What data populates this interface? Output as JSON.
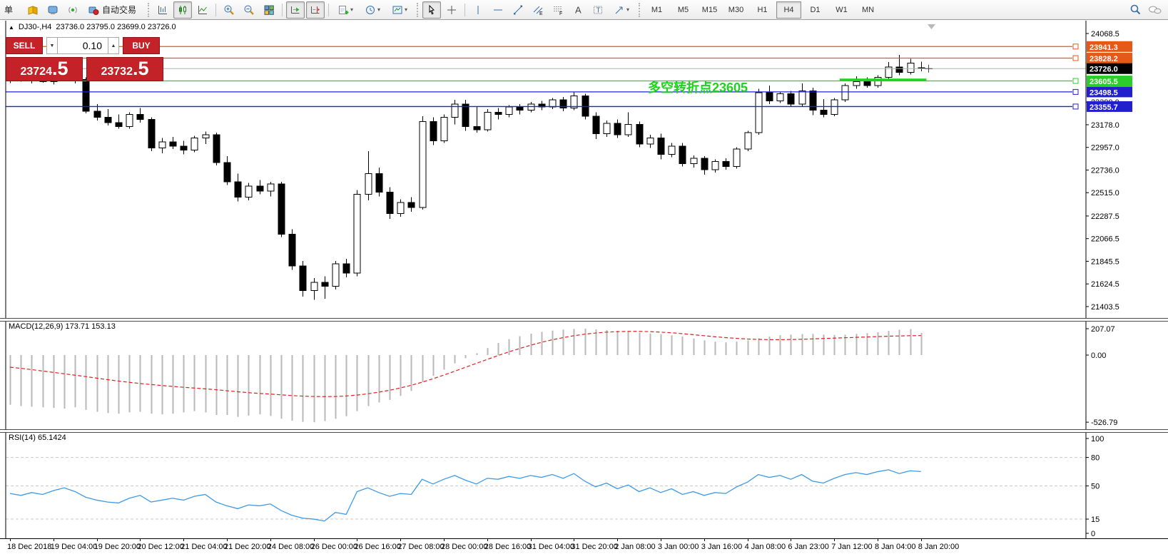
{
  "icons": {
    "triangle_down": "▼",
    "triangle_up": "▲",
    "collapse_arrow": "▲",
    "caret": "▾"
  },
  "toolbar": {
    "order_button": "单",
    "autotrading": "自动交易",
    "timeframes": [
      "M1",
      "M5",
      "M15",
      "M30",
      "H1",
      "H4",
      "D1",
      "W1",
      "MN"
    ],
    "active_timeframe": "H4",
    "icon_names": [
      "quotes-icon",
      "navigator-icon",
      "signals-icon",
      "autotrading-icon",
      "bar-chart-icon",
      "candlestick-chart-icon",
      "line-chart-icon",
      "zoom-in-icon",
      "zoom-out-icon",
      "tile-windows-icon",
      "auto-scroll-icon",
      "chart-shift-icon",
      "add-indicator-icon",
      "periods-icon",
      "templates-icon",
      "cursor-icon",
      "crosshair-icon",
      "vertical-line-icon",
      "horizontal-line-icon",
      "trendline-icon",
      "equidistant-channel-icon",
      "fibonacci-icon",
      "text-icon",
      "text-label-icon",
      "arrows-icon",
      "search-icon",
      "chat-icon"
    ]
  },
  "chart": {
    "title": {
      "symbol_period": "DJ30-,H4",
      "ohlc": "23736.0 23795.0 23699.0 23726.0"
    },
    "trade_panel": {
      "sell_label": "SELL",
      "buy_label": "BUY",
      "volume": "0.10",
      "sell_price_main": "23724",
      "sell_price_frac": ".5",
      "buy_price_main": "23732",
      "buy_price_frac": ".5"
    },
    "annotation": {
      "text": "多空转折点23605",
      "color": "#1bd41b"
    }
  },
  "chart_data": [
    {
      "type": "candlestick",
      "title": "DJ30-,H4",
      "x_label_every": 4,
      "x_labels": [
        "18 Dec 2018",
        "19 Dec 04:00",
        "19 Dec 20:00",
        "20 Dec 12:00",
        "21 Dec 04:00",
        "21 Dec 20:00",
        "24 Dec 08:00",
        "26 Dec 00:00",
        "26 Dec 16:00",
        "27 Dec 08:00",
        "28 Dec 00:00",
        "28 Dec 16:00",
        "31 Dec 04:00",
        "31 Dec 20:00",
        "2 Jan 08:00",
        "3 Jan 00:00",
        "3 Jan 16:00",
        "4 Jan 08:00",
        "6 Jan 23:00",
        "7 Jan 12:00",
        "8 Jan 04:00",
        "8 Jan 20:00"
      ],
      "ylim": [
        21403.5,
        24068.5
      ],
      "y_ticks": [
        24068.5,
        23399.0,
        23178.0,
        22957.0,
        22736.0,
        22515.0,
        22287.5,
        22066.5,
        21845.5,
        21624.5,
        21403.5
      ],
      "candles": [
        [
          23615,
          23655,
          23585,
          23640
        ],
        [
          23640,
          23660,
          23600,
          23610
        ],
        [
          23610,
          23650,
          23580,
          23635
        ],
        [
          23635,
          23645,
          23590,
          23600
        ],
        [
          23600,
          23640,
          23570,
          23625
        ],
        [
          23625,
          23660,
          23605,
          23645
        ],
        [
          23645,
          23655,
          23580,
          23610
        ],
        [
          23620,
          23640,
          23290,
          23310
        ],
        [
          23310,
          23380,
          23220,
          23250
        ],
        [
          23250,
          23330,
          23170,
          23200
        ],
        [
          23200,
          23280,
          23140,
          23160
        ],
        [
          23160,
          23300,
          23140,
          23280
        ],
        [
          23280,
          23340,
          23200,
          23230
        ],
        [
          23230,
          23250,
          22920,
          22950
        ],
        [
          22950,
          23050,
          22900,
          23010
        ],
        [
          23010,
          23060,
          22940,
          22970
        ],
        [
          22970,
          23020,
          22890,
          22930
        ],
        [
          22930,
          23070,
          22910,
          23050
        ],
        [
          23050,
          23110,
          22990,
          23080
        ],
        [
          23080,
          23100,
          22780,
          22810
        ],
        [
          22810,
          22870,
          22590,
          22620
        ],
        [
          22620,
          22700,
          22430,
          22470
        ],
        [
          22470,
          22610,
          22440,
          22580
        ],
        [
          22580,
          22640,
          22500,
          22530
        ],
        [
          22530,
          22620,
          22480,
          22600
        ],
        [
          22600,
          22620,
          22080,
          22110
        ],
        [
          22110,
          22160,
          21760,
          21800
        ],
        [
          21800,
          21850,
          21500,
          21560
        ],
        [
          21560,
          21680,
          21470,
          21640
        ],
        [
          21640,
          21700,
          21480,
          21600
        ],
        [
          21600,
          21850,
          21570,
          21820
        ],
        [
          21820,
          21870,
          21690,
          21730
        ],
        [
          21730,
          22540,
          21700,
          22500
        ],
        [
          22500,
          22920,
          22440,
          22700
        ],
        [
          22700,
          22760,
          22480,
          22520
        ],
        [
          22520,
          22570,
          22260,
          22310
        ],
        [
          22310,
          22450,
          22280,
          22420
        ],
        [
          22420,
          22470,
          22330,
          22370
        ],
        [
          22370,
          23260,
          22350,
          23210
        ],
        [
          23210,
          23250,
          22980,
          23020
        ],
        [
          23020,
          23280,
          23000,
          23250
        ],
        [
          23250,
          23420,
          23180,
          23380
        ],
        [
          23380,
          23420,
          23120,
          23160
        ],
        [
          23160,
          23360,
          23100,
          23130
        ],
        [
          23130,
          23330,
          23110,
          23300
        ],
        [
          23300,
          23340,
          23230,
          23280
        ],
        [
          23280,
          23370,
          23250,
          23350
        ],
        [
          23350,
          23380,
          23280,
          23320
        ],
        [
          23320,
          23400,
          23300,
          23380
        ],
        [
          23380,
          23410,
          23320,
          23350
        ],
        [
          23350,
          23440,
          23330,
          23420
        ],
        [
          23420,
          23450,
          23310,
          23340
        ],
        [
          23340,
          23500,
          23320,
          23460
        ],
        [
          23460,
          23480,
          23230,
          23260
        ],
        [
          23260,
          23300,
          23040,
          23090
        ],
        [
          23090,
          23220,
          23060,
          23190
        ],
        [
          23190,
          23230,
          23050,
          23080
        ],
        [
          23080,
          23300,
          23060,
          23180
        ],
        [
          23180,
          23210,
          22960,
          22990
        ],
        [
          22990,
          23080,
          22950,
          23050
        ],
        [
          23050,
          23090,
          22840,
          22890
        ],
        [
          22890,
          23000,
          22860,
          22970
        ],
        [
          22970,
          23000,
          22770,
          22800
        ],
        [
          22800,
          22880,
          22760,
          22850
        ],
        [
          22850,
          22870,
          22690,
          22740
        ],
        [
          22740,
          22840,
          22710,
          22820
        ],
        [
          22820,
          22850,
          22740,
          22770
        ],
        [
          22770,
          22960,
          22750,
          22940
        ],
        [
          22940,
          23120,
          22920,
          23100
        ],
        [
          23100,
          23530,
          23080,
          23490
        ],
        [
          23490,
          23560,
          23380,
          23410
        ],
        [
          23410,
          23500,
          23390,
          23480
        ],
        [
          23480,
          23510,
          23350,
          23380
        ],
        [
          23380,
          23580,
          23360,
          23510
        ],
        [
          23510,
          23540,
          23270,
          23320
        ],
        [
          23320,
          23430,
          23250,
          23280
        ],
        [
          23280,
          23440,
          23260,
          23420
        ],
        [
          23420,
          23580,
          23400,
          23560
        ],
        [
          23560,
          23650,
          23530,
          23600
        ],
        [
          23600,
          23640,
          23540,
          23560
        ],
        [
          23560,
          23660,
          23540,
          23640
        ],
        [
          23640,
          23790,
          23620,
          23740
        ],
        [
          23740,
          23860,
          23660,
          23690
        ],
        [
          23690,
          23820,
          23670,
          23780
        ],
        [
          23736,
          23795,
          23699,
          23726
        ]
      ],
      "hlines": [
        {
          "price": 23941.3,
          "color": "#e45818",
          "label": "23941.3"
        },
        {
          "price": 23828.2,
          "color": "#e45818",
          "label": "23828.2"
        },
        {
          "price": 23726.0,
          "color": "#000000",
          "label": "23726.0",
          "current": true
        },
        {
          "price": 23605.5,
          "color": "#2bcc2b",
          "label": "23605.5"
        },
        {
          "price": 23498.5,
          "color": "#2020cc",
          "label": "23498.5"
        },
        {
          "price": 23355.7,
          "color": "#2020cc",
          "label": "23355.7"
        }
      ],
      "trend_segment": {
        "from_index": 76.5,
        "to_index": 84.5,
        "price": 23618,
        "color": "#1bd41b",
        "width": 3
      }
    },
    {
      "type": "bar",
      "name": "MACD",
      "label": "MACD(12,26,9) 173.71 153.13",
      "histogram_color": "#b8b8b8",
      "signal_color": "#e02020",
      "y_ticks": [
        {
          "value": 207.07,
          "label": "207.07"
        },
        {
          "value": 0,
          "label": "0.00"
        },
        {
          "value": -526.79,
          "label": "-526.79"
        }
      ],
      "values": [
        -390,
        -400,
        -405,
        -410,
        -415,
        -420,
        -410,
        -430,
        -445,
        -455,
        -460,
        -450,
        -445,
        -460,
        -465,
        -460,
        -450,
        -440,
        -450,
        -470,
        -470,
        -485,
        -475,
        -465,
        -478,
        -500,
        -515,
        -524,
        -527,
        -518,
        -500,
        -480,
        -440,
        -400,
        -372,
        -352,
        -320,
        -282,
        -213,
        -163,
        -115,
        -65,
        -25,
        15,
        55,
        95,
        125,
        148,
        168,
        182,
        192,
        200,
        205,
        207.07,
        202,
        196,
        190,
        184,
        176,
        170,
        164,
        155,
        146,
        130,
        116,
        106,
        100,
        106,
        116,
        132,
        146,
        156,
        161,
        165,
        166,
        161,
        158,
        160,
        166,
        172,
        180,
        190,
        199,
        204,
        173.71
      ],
      "signal": [
        -95,
        -104,
        -114,
        -125,
        -136,
        -147,
        -158,
        -169,
        -181,
        -193,
        -204,
        -214,
        -223,
        -231,
        -239,
        -246,
        -253,
        -259,
        -265,
        -272,
        -280,
        -288,
        -295,
        -301,
        -306,
        -312,
        -318,
        -322,
        -325,
        -326,
        -325,
        -321,
        -314,
        -304,
        -291,
        -276,
        -258,
        -237,
        -213,
        -186,
        -157,
        -127,
        -96,
        -65,
        -34,
        -4,
        25,
        52,
        77,
        100,
        120,
        137,
        152,
        164,
        173,
        180,
        184,
        186,
        186,
        184,
        180,
        175,
        168,
        160,
        152,
        144,
        137,
        131,
        126,
        123,
        121,
        121,
        122,
        124,
        127,
        130,
        133,
        136,
        139,
        142,
        145,
        148,
        150,
        152,
        153.13
      ]
    },
    {
      "type": "line",
      "name": "RSI",
      "label": "RSI(14) 65.1424",
      "line_color": "#3d9ae8",
      "y_ticks": [
        100,
        80,
        50,
        15,
        0
      ],
      "levels": [
        80,
        50,
        15
      ],
      "values": [
        42,
        40,
        43,
        41,
        45,
        48,
        44,
        38,
        35,
        33,
        32,
        37,
        40,
        33,
        35,
        37,
        35,
        39,
        41,
        33,
        29,
        26,
        30,
        29,
        31,
        24,
        19,
        16,
        15,
        13,
        22,
        20,
        44,
        48,
        43,
        39,
        42,
        41,
        57,
        52,
        57,
        61,
        56,
        52,
        58,
        57,
        60,
        58,
        61,
        59,
        62,
        58,
        63,
        55,
        49,
        53,
        47,
        51,
        44,
        48,
        43,
        47,
        41,
        44,
        40,
        43,
        42,
        49,
        54,
        62,
        59,
        61,
        57,
        62,
        55,
        53,
        58,
        62,
        64,
        62,
        65,
        67,
        63,
        66,
        65.14
      ]
    }
  ]
}
